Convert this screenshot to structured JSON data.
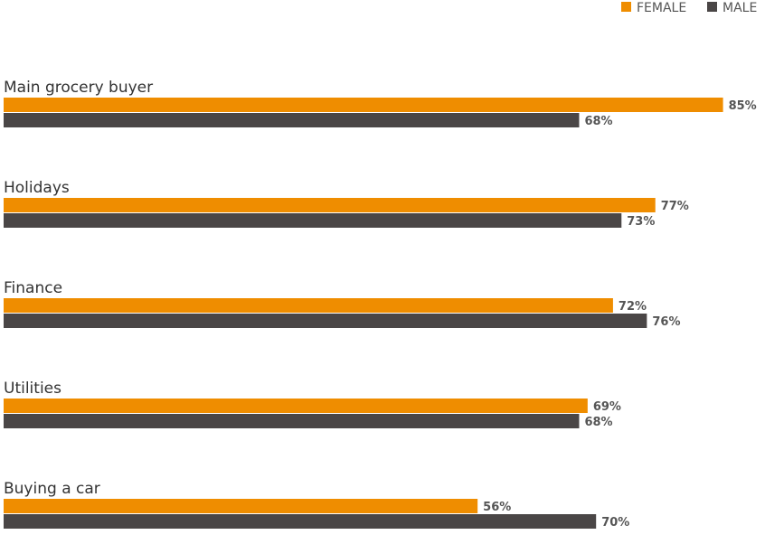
{
  "chart_data": {
    "type": "bar",
    "orientation": "horizontal",
    "categories": [
      "Main grocery buyer",
      "Holidays",
      "Finance",
      "Utilities",
      "Buying a car"
    ],
    "series": [
      {
        "name": "FEMALE",
        "color": "#EF8D00",
        "values": [
          85,
          77,
          72,
          69,
          56
        ],
        "labels": [
          "85%",
          "77%",
          "72%",
          "69%",
          "56%"
        ]
      },
      {
        "name": "MALE",
        "color": "#4A4646",
        "values": [
          68,
          73,
          76,
          68,
          70
        ],
        "labels": [
          "68%",
          "73%",
          "76%",
          "68%",
          "70%"
        ]
      }
    ],
    "xlim": [
      0,
      100
    ],
    "grid": false,
    "legend": "top-right",
    "title": "",
    "xlabel": "",
    "ylabel": ""
  }
}
